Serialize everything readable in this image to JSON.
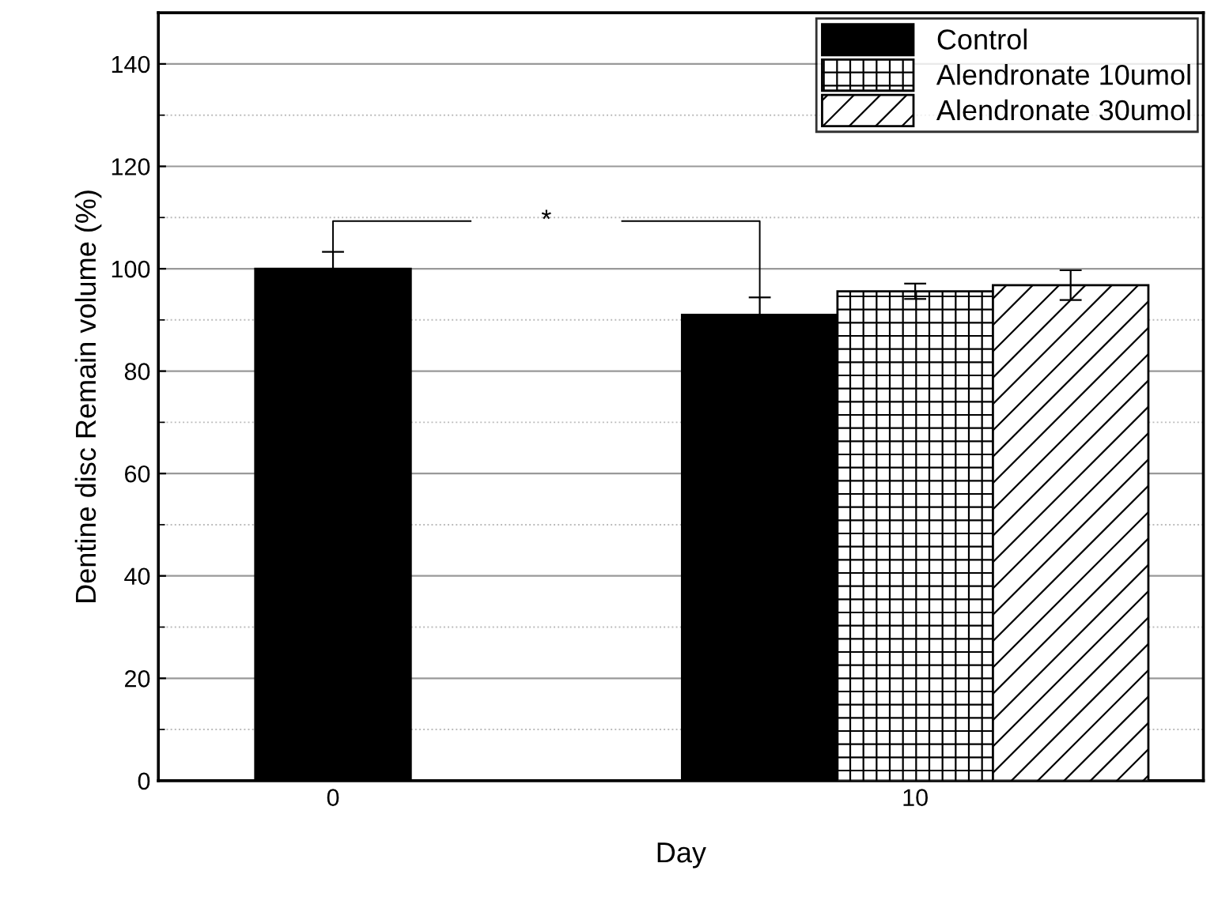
{
  "chart_data": {
    "type": "bar",
    "xlabel": "Day",
    "ylabel": "Dentine disc Remain volume (%)",
    "categories": [
      "0",
      "10"
    ],
    "series": [
      {
        "name": "Control",
        "color": "#000000",
        "values": [
          100,
          91.0
        ],
        "errors": [
          3.3,
          3.4
        ]
      },
      {
        "name": "Alendronate 10umol",
        "color": "#000000",
        "values": [
          null,
          95.6
        ],
        "errors": [
          null,
          1.5
        ]
      },
      {
        "name": "Alendronate 30umol",
        "color": "#000000",
        "values": [
          null,
          96.8
        ],
        "errors": [
          null,
          2.9
        ]
      }
    ],
    "ylim": [
      0,
      150
    ],
    "yticks": [
      0,
      20,
      40,
      60,
      80,
      100,
      120,
      140
    ],
    "grid": "y",
    "legend": "top right",
    "annotations": [
      "*"
    ]
  }
}
